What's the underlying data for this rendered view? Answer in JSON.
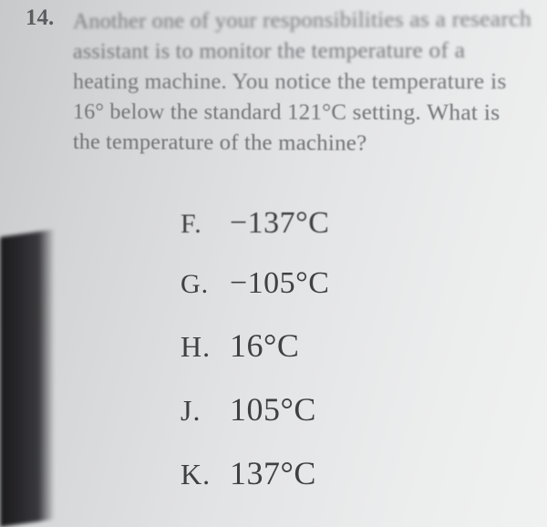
{
  "question": {
    "number": "14.",
    "line1": "Another one of your responsibilities as a research",
    "line2": "assistant is to monitor the temperature of a",
    "line3": "heating machine. You notice the temperature is",
    "line4": "16° below the standard 121°C setting. What is",
    "line5": "the temperature of the machine?"
  },
  "choices": {
    "F": {
      "letter": "F.",
      "value": "−137°C"
    },
    "G": {
      "letter": "G.",
      "value": "−105°C"
    },
    "H": {
      "letter": "H.",
      "value": "16°C"
    },
    "J": {
      "letter": "J.",
      "value": "105°C"
    },
    "K": {
      "letter": "K.",
      "value": "137°C"
    }
  }
}
